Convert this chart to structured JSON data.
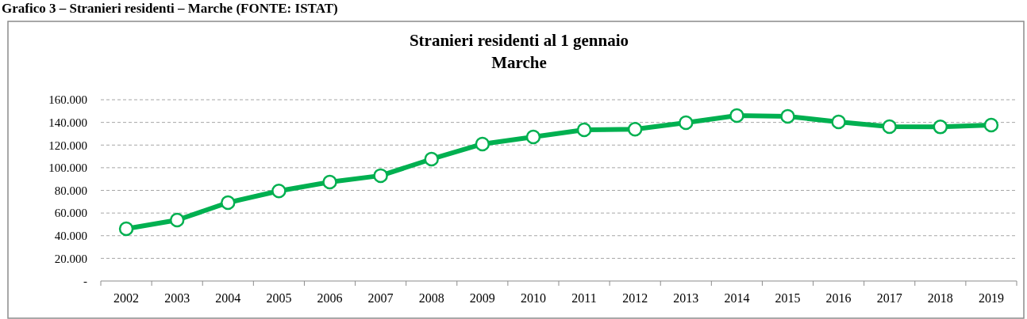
{
  "chart_data": {
    "type": "line",
    "title": "Stranieri residenti al 1 gennaio\nMarche",
    "annotations": [
      "Grafico 3 – Stranieri residenti – Marche (FONTE: ISTAT)"
    ],
    "categories": [
      "2002",
      "2003",
      "2004",
      "2005",
      "2006",
      "2007",
      "2008",
      "2009",
      "2010",
      "2011",
      "2012",
      "2013",
      "2014",
      "2015",
      "2016",
      "2017",
      "2018",
      "2019"
    ],
    "series": [
      {
        "color": "#00b050",
        "values": [
          46100,
          53800,
          69200,
          79500,
          87300,
          93000,
          107600,
          120900,
          127200,
          133400,
          134000,
          139700,
          146000,
          145300,
          140400,
          136200,
          136000,
          137600
        ]
      }
    ],
    "ylim": [
      0,
      160000
    ],
    "yticks": [
      {
        "value": 0,
        "label": "-"
      },
      {
        "value": 20000,
        "label": "20.000"
      },
      {
        "value": 40000,
        "label": "40.000"
      },
      {
        "value": 60000,
        "label": "60.000"
      },
      {
        "value": 80000,
        "label": "80.000"
      },
      {
        "value": 100000,
        "label": "100.000"
      },
      {
        "value": 120000,
        "label": "120.000"
      },
      {
        "value": 140000,
        "label": "140.000"
      },
      {
        "value": 160000,
        "label": "160.000"
      }
    ],
    "grid": "y",
    "marker": "circle",
    "line_style": "solid"
  }
}
